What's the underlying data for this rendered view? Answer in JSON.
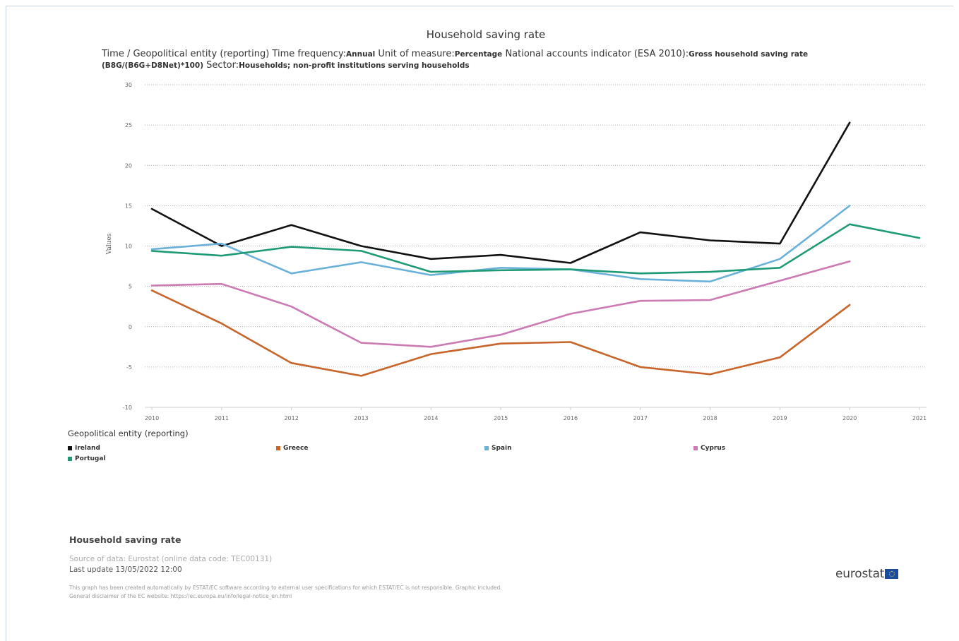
{
  "header": {
    "title": "Household saving rate",
    "subtitle_parts": [
      {
        "label": "Time / Geopolitical entity (reporting)  Time frequency:",
        "value": "Annual"
      },
      {
        "label": "  Unit of measure:",
        "value": "Percentage"
      },
      {
        "label": "  National accounts indicator (ESA 2010):",
        "value": "Gross household saving rate (B8G/(B6G+D8Net)*100)"
      },
      {
        "label": "  Sector:",
        "value": "Households; non-profit institutions serving households"
      }
    ]
  },
  "chart_data": {
    "type": "line",
    "title": "Household saving rate",
    "ylabel": "Values",
    "xlabel": "",
    "ylim": [
      -10,
      30
    ],
    "yticks": [
      -10,
      -5,
      0,
      5,
      10,
      15,
      20,
      25,
      30
    ],
    "ytick_labels": [
      "-10",
      "-5",
      "0",
      "5",
      "10",
      "15",
      "20",
      "25",
      "30"
    ],
    "categories": [
      "2010",
      "2011",
      "2012",
      "2013",
      "2014",
      "2015",
      "2016",
      "2017",
      "2018",
      "2019",
      "2020",
      "2021"
    ],
    "grid": "horizontal-dotted",
    "legend_placement": "bottom",
    "series": [
      {
        "name": "Ireland",
        "color": "#111111",
        "values": [
          14.6,
          10.0,
          12.6,
          10.0,
          8.4,
          8.9,
          7.9,
          11.7,
          10.7,
          10.3,
          25.3,
          null
        ]
      },
      {
        "name": "Greece",
        "color": "#c8652a",
        "values": [
          4.5,
          0.4,
          -4.5,
          -6.1,
          -3.4,
          -2.1,
          -1.9,
          -5.0,
          -5.9,
          -3.8,
          2.7,
          null
        ]
      },
      {
        "name": "Spain",
        "color": "#6ab1da",
        "values": [
          9.6,
          10.3,
          6.6,
          8.0,
          6.4,
          7.3,
          7.1,
          5.9,
          5.6,
          8.4,
          15.0,
          null
        ]
      },
      {
        "name": "Cyprus",
        "color": "#cc7ab4",
        "values": [
          5.1,
          5.3,
          2.5,
          -2.0,
          -2.5,
          -1.0,
          1.6,
          3.2,
          3.3,
          5.7,
          8.1,
          null
        ]
      },
      {
        "name": "Portugal",
        "color": "#1f9a76",
        "values": [
          9.4,
          8.8,
          9.9,
          9.4,
          6.8,
          7.0,
          7.1,
          6.6,
          6.8,
          7.3,
          12.7,
          11.0
        ]
      }
    ]
  },
  "legend": {
    "title": "Geopolitical entity (reporting)"
  },
  "footer": {
    "title": "Household saving rate",
    "source": "Source of data: Eurostat (online data code: TEC00131)",
    "last_update": "Last update 13/05/2022 12:00",
    "disclaimer_line1": "This graph has been created automatically by ESTAT/EC software according to external user specifications for which ESTAT/EC is not responsible. Graphic included.",
    "disclaimer_line2": "General disclaimer of the EC website: https://ec.europa.eu/info/legal-notice_en.html",
    "logo_text": "eurostat"
  }
}
